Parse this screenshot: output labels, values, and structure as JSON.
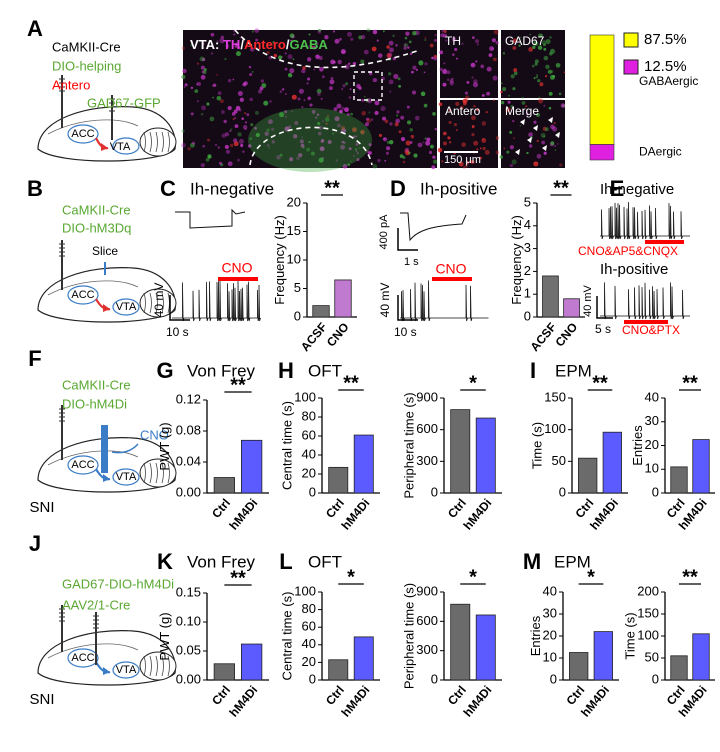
{
  "panels": [
    {
      "letter": "A"
    },
    {
      "letter": "B"
    },
    {
      "letter": "C",
      "heading": "Ih-negative"
    },
    {
      "letter": "D",
      "heading": "Ih-positive"
    },
    {
      "letter": "E"
    },
    {
      "letter": "F"
    },
    {
      "letter": "G",
      "heading": "Von Frey"
    },
    {
      "letter": "H",
      "heading": "OFT"
    },
    {
      "letter": "I",
      "heading": "EPM"
    },
    {
      "letter": "J"
    },
    {
      "letter": "K",
      "heading": "Von Frey"
    },
    {
      "letter": "L",
      "heading": "OFT"
    },
    {
      "letter": "M",
      "heading": "EPM"
    }
  ],
  "micrograph_title": [
    {
      "text": "VTA: ",
      "color": "#ffffff"
    },
    {
      "text": "TH",
      "color": "#e040e0"
    },
    {
      "text": "/",
      "color": "#ffffff"
    },
    {
      "text": "Antero",
      "color": "#ff2a2a"
    },
    {
      "text": "/",
      "color": "#ffffff"
    },
    {
      "text": "GABA",
      "color": "#4cc04c"
    }
  ],
  "texts": [
    {
      "text": "CaMKII-Cre",
      "color": "#000000"
    },
    {
      "text": "DIO-helping",
      "color": "#5aa832"
    },
    {
      "text": "Antero",
      "color": "#ff0000"
    },
    {
      "text": "GAD67-GFP",
      "color": "#5aa832"
    },
    {
      "text": "ACC",
      "color": "#000000"
    },
    {
      "text": "VTA",
      "color": "#000000"
    },
    {
      "text": "TH",
      "color": "#ffffff"
    },
    {
      "text": "GAD67",
      "color": "#ffffff"
    },
    {
      "text": "Antero",
      "color": "#ffffff"
    },
    {
      "text": "Merge",
      "color": "#ffffff"
    },
    {
      "text": "150 μm",
      "color": "#ffffff"
    },
    {
      "text": "CaMKII-Cre",
      "color": "#5aa832"
    },
    {
      "text": "DIO-hM3Dq",
      "color": "#5aa832"
    },
    {
      "text": "Slice",
      "color": "#000000"
    },
    {
      "text": "ACC",
      "color": "#000000"
    },
    {
      "text": "VTA",
      "color": "#000000"
    },
    {
      "text": "CNO",
      "color": "#ff0000"
    },
    {
      "text": "40 mV",
      "color": "#000000"
    },
    {
      "text": "10 s",
      "color": "#000000"
    },
    {
      "text": "400 pA",
      "color": "#000000"
    },
    {
      "text": "1 s",
      "color": "#000000"
    },
    {
      "text": "CNO",
      "color": "#ff0000"
    },
    {
      "text": "40 mV",
      "color": "#000000"
    },
    {
      "text": "10 s",
      "color": "#000000"
    },
    {
      "text": "Ih-negative",
      "color": "#000000"
    },
    {
      "text": "CNO&AP5&CNQX",
      "color": "#ff0000"
    },
    {
      "text": "Ih-positive",
      "color": "#000000"
    },
    {
      "text": "40 mV",
      "color": "#000000"
    },
    {
      "text": "5 s",
      "color": "#000000"
    },
    {
      "text": "CNO&PTX",
      "color": "#ff0000"
    },
    {
      "text": "CaMKII-Cre",
      "color": "#5aa832"
    },
    {
      "text": "DIO-hM4Di",
      "color": "#5aa832"
    },
    {
      "text": "CNO",
      "color": "#3a7cc6"
    },
    {
      "text": "ACC",
      "color": "#000000"
    },
    {
      "text": "VTA",
      "color": "#000000"
    },
    {
      "text": "SNI",
      "color": "#000000"
    },
    {
      "text": "GAD67-DIO-hM4Di",
      "color": "#5aa832"
    },
    {
      "text": "AAV2/1-Cre",
      "color": "#5aa832"
    },
    {
      "text": "ACC",
      "color": "#000000"
    },
    {
      "text": "VTA",
      "color": "#000000"
    },
    {
      "text": "SNI",
      "color": "#000000"
    }
  ],
  "chart_data": [
    {
      "type": "stacked_bar",
      "series": [
        {
          "name": "GABAergic",
          "color": "#ffff00",
          "values": [
            87.5
          ],
          "value_labels": [
            "87.5%"
          ]
        },
        {
          "name": "DAergic",
          "color": "#e020e0",
          "values": [
            12.5
          ],
          "value_labels": [
            "12.5%"
          ]
        }
      ]
    },
    {
      "type": "bar",
      "ylabel": "Frequency (Hz)",
      "categories": [
        "ACSF",
        "CNO"
      ],
      "values": [
        2,
        6.5
      ],
      "colors": [
        "#707070",
        "#c07ad0"
      ],
      "ylim": [
        0,
        20
      ],
      "yticks": [
        0,
        5,
        10,
        15,
        20
      ],
      "significance": "**"
    },
    {
      "type": "bar",
      "ylabel": "Frequency (Hz)",
      "categories": [
        "ACSF",
        "CNO"
      ],
      "values": [
        1.8,
        0.8
      ],
      "colors": [
        "#707070",
        "#c07ad0"
      ],
      "ylim": [
        0,
        5
      ],
      "yticks": [
        0,
        1,
        2,
        3,
        4,
        5
      ],
      "significance": "**"
    },
    {
      "type": "bar",
      "ylabel": "PWT (g)",
      "categories": [
        "Ctrl",
        "hM4Di"
      ],
      "values": [
        0.02,
        0.068
      ],
      "colors": [
        "#6b6b6b",
        "#5b5bff"
      ],
      "ylim": [
        0,
        0.12
      ],
      "yticks": [
        {
          "value": 0,
          "label": "0.00"
        },
        0.04,
        0.08,
        0.12
      ],
      "significance": "**"
    },
    {
      "type": "bar",
      "ylabel": "Central time (s)",
      "categories": [
        "Ctrl",
        "hM4Di"
      ],
      "values": [
        27,
        61
      ],
      "colors": [
        "#6b6b6b",
        "#5b5bff"
      ],
      "ylim": [
        0,
        100
      ],
      "yticks": [
        0,
        20,
        40,
        60,
        80,
        100
      ],
      "significance": "**"
    },
    {
      "type": "bar",
      "ylabel": "Peripheral time (s)",
      "categories": [
        "Ctrl",
        "hM4Di"
      ],
      "values": [
        790,
        710
      ],
      "colors": [
        "#6b6b6b",
        "#5b5bff"
      ],
      "ylim": [
        0,
        900
      ],
      "yticks": [
        0,
        300,
        600,
        900
      ],
      "significance": "*"
    },
    {
      "type": "bar",
      "ylabel": "Time (s)",
      "categories": [
        "Ctrl",
        "hM4Di"
      ],
      "values": [
        55,
        96
      ],
      "colors": [
        "#6b6b6b",
        "#5b5bff"
      ],
      "ylim": [
        0,
        150
      ],
      "yticks": [
        0,
        50,
        100,
        150
      ],
      "significance": "**"
    },
    {
      "type": "bar",
      "ylabel": "Entries",
      "categories": [
        "Ctrl",
        "hM4Di"
      ],
      "values": [
        11,
        22.5
      ],
      "colors": [
        "#6b6b6b",
        "#5b5bff"
      ],
      "ylim": [
        0,
        40
      ],
      "yticks": [
        0,
        10,
        20,
        30,
        40
      ],
      "significance": "**"
    },
    {
      "type": "bar",
      "ylabel": "PWT (g)",
      "categories": [
        "Ctrl",
        "hM4Di"
      ],
      "values": [
        0.028,
        0.062
      ],
      "colors": [
        "#6b6b6b",
        "#5b5bff"
      ],
      "ylim": [
        0,
        0.15
      ],
      "yticks": [
        {
          "value": 0,
          "label": "0.00"
        },
        0.05,
        {
          "value": 0.1,
          "label": "0.10"
        },
        0.15
      ],
      "significance": "**"
    },
    {
      "type": "bar",
      "ylabel": "Central time (s)",
      "categories": [
        "Ctrl",
        "hM4Di"
      ],
      "values": [
        23,
        49
      ],
      "colors": [
        "#6b6b6b",
        "#5b5bff"
      ],
      "ylim": [
        0,
        100
      ],
      "yticks": [
        0,
        20,
        40,
        60,
        80,
        100
      ],
      "significance": "*"
    },
    {
      "type": "bar",
      "ylabel": "Peripheral time (s)",
      "categories": [
        "Ctrl",
        "hM4Di"
      ],
      "values": [
        775,
        665
      ],
      "colors": [
        "#6b6b6b",
        "#5b5bff"
      ],
      "ylim": [
        0,
        900
      ],
      "yticks": [
        0,
        300,
        600,
        900
      ],
      "significance": "*"
    },
    {
      "type": "bar",
      "ylabel": "Entries",
      "categories": [
        "Ctrl",
        "hM4Di"
      ],
      "values": [
        12.5,
        22
      ],
      "colors": [
        "#6b6b6b",
        "#5b5bff"
      ],
      "ylim": [
        0,
        40
      ],
      "yticks": [
        0,
        10,
        20,
        30,
        40
      ],
      "significance": "*"
    },
    {
      "type": "bar",
      "ylabel": "Time (s)",
      "categories": [
        "Ctrl",
        "hM4Di"
      ],
      "values": [
        55,
        105
      ],
      "colors": [
        "#6b6b6b",
        "#5b5bff"
      ],
      "ylim": [
        0,
        200
      ],
      "yticks": [
        0,
        50,
        100,
        150,
        200
      ],
      "significance": "**"
    }
  ]
}
